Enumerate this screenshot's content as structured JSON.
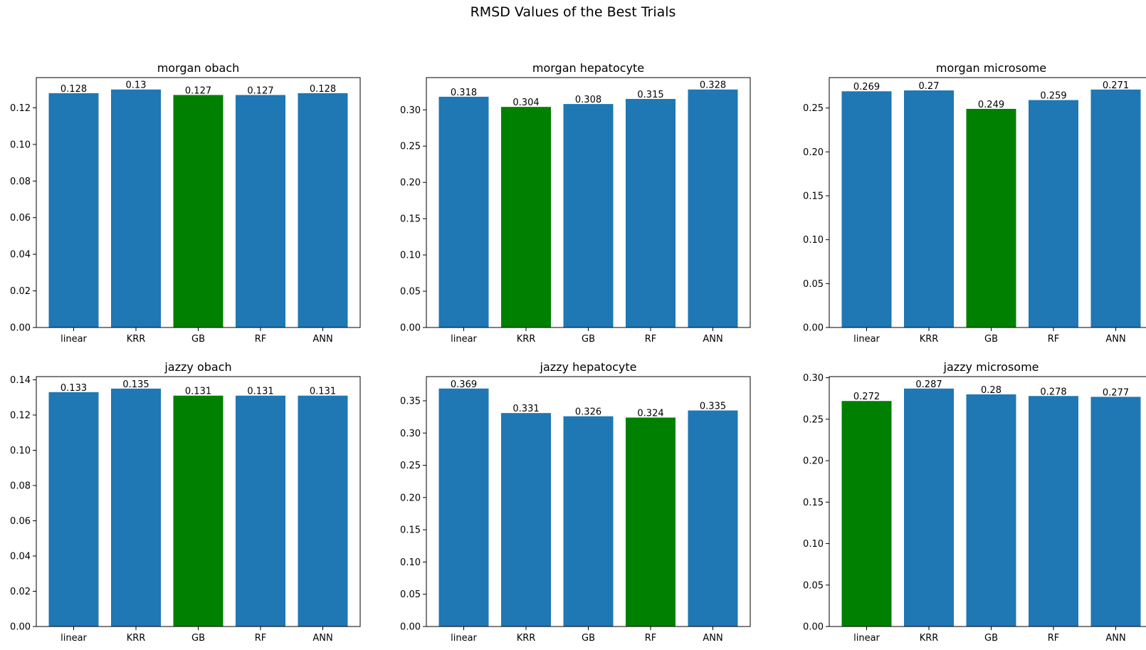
{
  "title": "RMSD Values of the Best Trials",
  "colors": {
    "default": "#1f77b4",
    "best": "#008000",
    "axis": "#000000"
  },
  "chart_data": [
    {
      "type": "bar",
      "title": "morgan obach",
      "categories": [
        "linear",
        "KRR",
        "GB",
        "RF",
        "ANN"
      ],
      "values": [
        0.128,
        0.13,
        0.127,
        0.127,
        0.128
      ],
      "labels": [
        "0.128",
        "0.13",
        "0.127",
        "0.127",
        "0.128"
      ],
      "best_index": 2,
      "ylim": [
        0,
        0.1365
      ],
      "yticks": [
        0,
        0.02,
        0.04,
        0.06,
        0.08,
        0.1,
        0.12
      ],
      "ytick_labels": [
        "0.00",
        "0.02",
        "0.04",
        "0.06",
        "0.08",
        "0.10",
        "0.12"
      ]
    },
    {
      "type": "bar",
      "title": "morgan hepatocyte",
      "categories": [
        "linear",
        "KRR",
        "GB",
        "RF",
        "ANN"
      ],
      "values": [
        0.318,
        0.304,
        0.308,
        0.315,
        0.328
      ],
      "labels": [
        "0.318",
        "0.304",
        "0.308",
        "0.315",
        "0.328"
      ],
      "best_index": 1,
      "ylim": [
        0,
        0.3444
      ],
      "yticks": [
        0,
        0.05,
        0.1,
        0.15,
        0.2,
        0.25,
        0.3
      ],
      "ytick_labels": [
        "0.00",
        "0.05",
        "0.10",
        "0.15",
        "0.20",
        "0.25",
        "0.30"
      ]
    },
    {
      "type": "bar",
      "title": "morgan microsome",
      "categories": [
        "linear",
        "KRR",
        "GB",
        "RF",
        "ANN"
      ],
      "values": [
        0.269,
        0.27,
        0.249,
        0.259,
        0.271
      ],
      "labels": [
        "0.269",
        "0.27",
        "0.249",
        "0.259",
        "0.271"
      ],
      "best_index": 2,
      "ylim": [
        0,
        0.2846
      ],
      "yticks": [
        0,
        0.05,
        0.1,
        0.15,
        0.2,
        0.25
      ],
      "ytick_labels": [
        "0.00",
        "0.05",
        "0.10",
        "0.15",
        "0.20",
        "0.25"
      ]
    },
    {
      "type": "bar",
      "title": "jazzy obach",
      "categories": [
        "linear",
        "KRR",
        "GB",
        "RF",
        "ANN"
      ],
      "values": [
        0.133,
        0.135,
        0.131,
        0.131,
        0.131
      ],
      "labels": [
        "0.133",
        "0.135",
        "0.131",
        "0.131",
        "0.131"
      ],
      "best_index": 2,
      "ylim": [
        0,
        0.1418
      ],
      "yticks": [
        0,
        0.02,
        0.04,
        0.06,
        0.08,
        0.1,
        0.12,
        0.14
      ],
      "ytick_labels": [
        "0.00",
        "0.02",
        "0.04",
        "0.06",
        "0.08",
        "0.10",
        "0.12",
        "0.14"
      ]
    },
    {
      "type": "bar",
      "title": "jazzy hepatocyte",
      "categories": [
        "linear",
        "KRR",
        "GB",
        "RF",
        "ANN"
      ],
      "values": [
        0.369,
        0.331,
        0.326,
        0.324,
        0.335
      ],
      "labels": [
        "0.369",
        "0.331",
        "0.326",
        "0.324",
        "0.335"
      ],
      "best_index": 3,
      "ylim": [
        0,
        0.3875
      ],
      "yticks": [
        0,
        0.05,
        0.1,
        0.15,
        0.2,
        0.25,
        0.3,
        0.35
      ],
      "ytick_labels": [
        "0.00",
        "0.05",
        "0.10",
        "0.15",
        "0.20",
        "0.25",
        "0.30",
        "0.35"
      ]
    },
    {
      "type": "bar",
      "title": "jazzy microsome",
      "categories": [
        "linear",
        "KRR",
        "GB",
        "RF",
        "ANN"
      ],
      "values": [
        0.272,
        0.287,
        0.28,
        0.278,
        0.277
      ],
      "labels": [
        "0.272",
        "0.287",
        "0.28",
        "0.278",
        "0.277"
      ],
      "best_index": 0,
      "ylim": [
        0,
        0.3014
      ],
      "yticks": [
        0,
        0.05,
        0.1,
        0.15,
        0.2,
        0.25,
        0.3
      ],
      "ytick_labels": [
        "0.00",
        "0.05",
        "0.10",
        "0.15",
        "0.20",
        "0.25",
        "0.30"
      ]
    }
  ]
}
